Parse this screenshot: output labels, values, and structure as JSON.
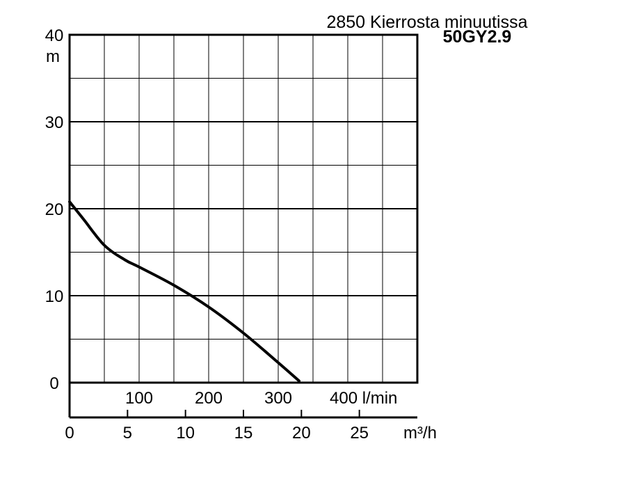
{
  "chart_data": {
    "type": "line",
    "title": "2850 Kierrosta minuutissa",
    "subtitle": "50GY2.9",
    "ylabel": "m",
    "ylim": [
      0,
      40
    ],
    "yticks": [
      "0",
      "10",
      "20",
      "30",
      "40"
    ],
    "xlim_lpm": [
      0,
      500
    ],
    "x_lpm_ticks": [
      "100",
      "200",
      "300",
      "400 l/min"
    ],
    "x_lpm_values": [
      100,
      200,
      300,
      400
    ],
    "x_m3h_ticks": [
      "0",
      "5",
      "10",
      "15",
      "20",
      "25"
    ],
    "x_m3h_values": [
      0,
      5,
      10,
      15,
      20,
      25
    ],
    "x_m3h_unit": "m³/h",
    "grid": true,
    "series": [
      {
        "x": [
          0,
          20,
          50,
          80,
          100,
          150,
          200,
          250,
          300,
          330
        ],
        "y": [
          20.8,
          18.8,
          15.8,
          14.1,
          13.3,
          11.2,
          8.7,
          5.7,
          2.3,
          0.2
        ]
      }
    ]
  }
}
